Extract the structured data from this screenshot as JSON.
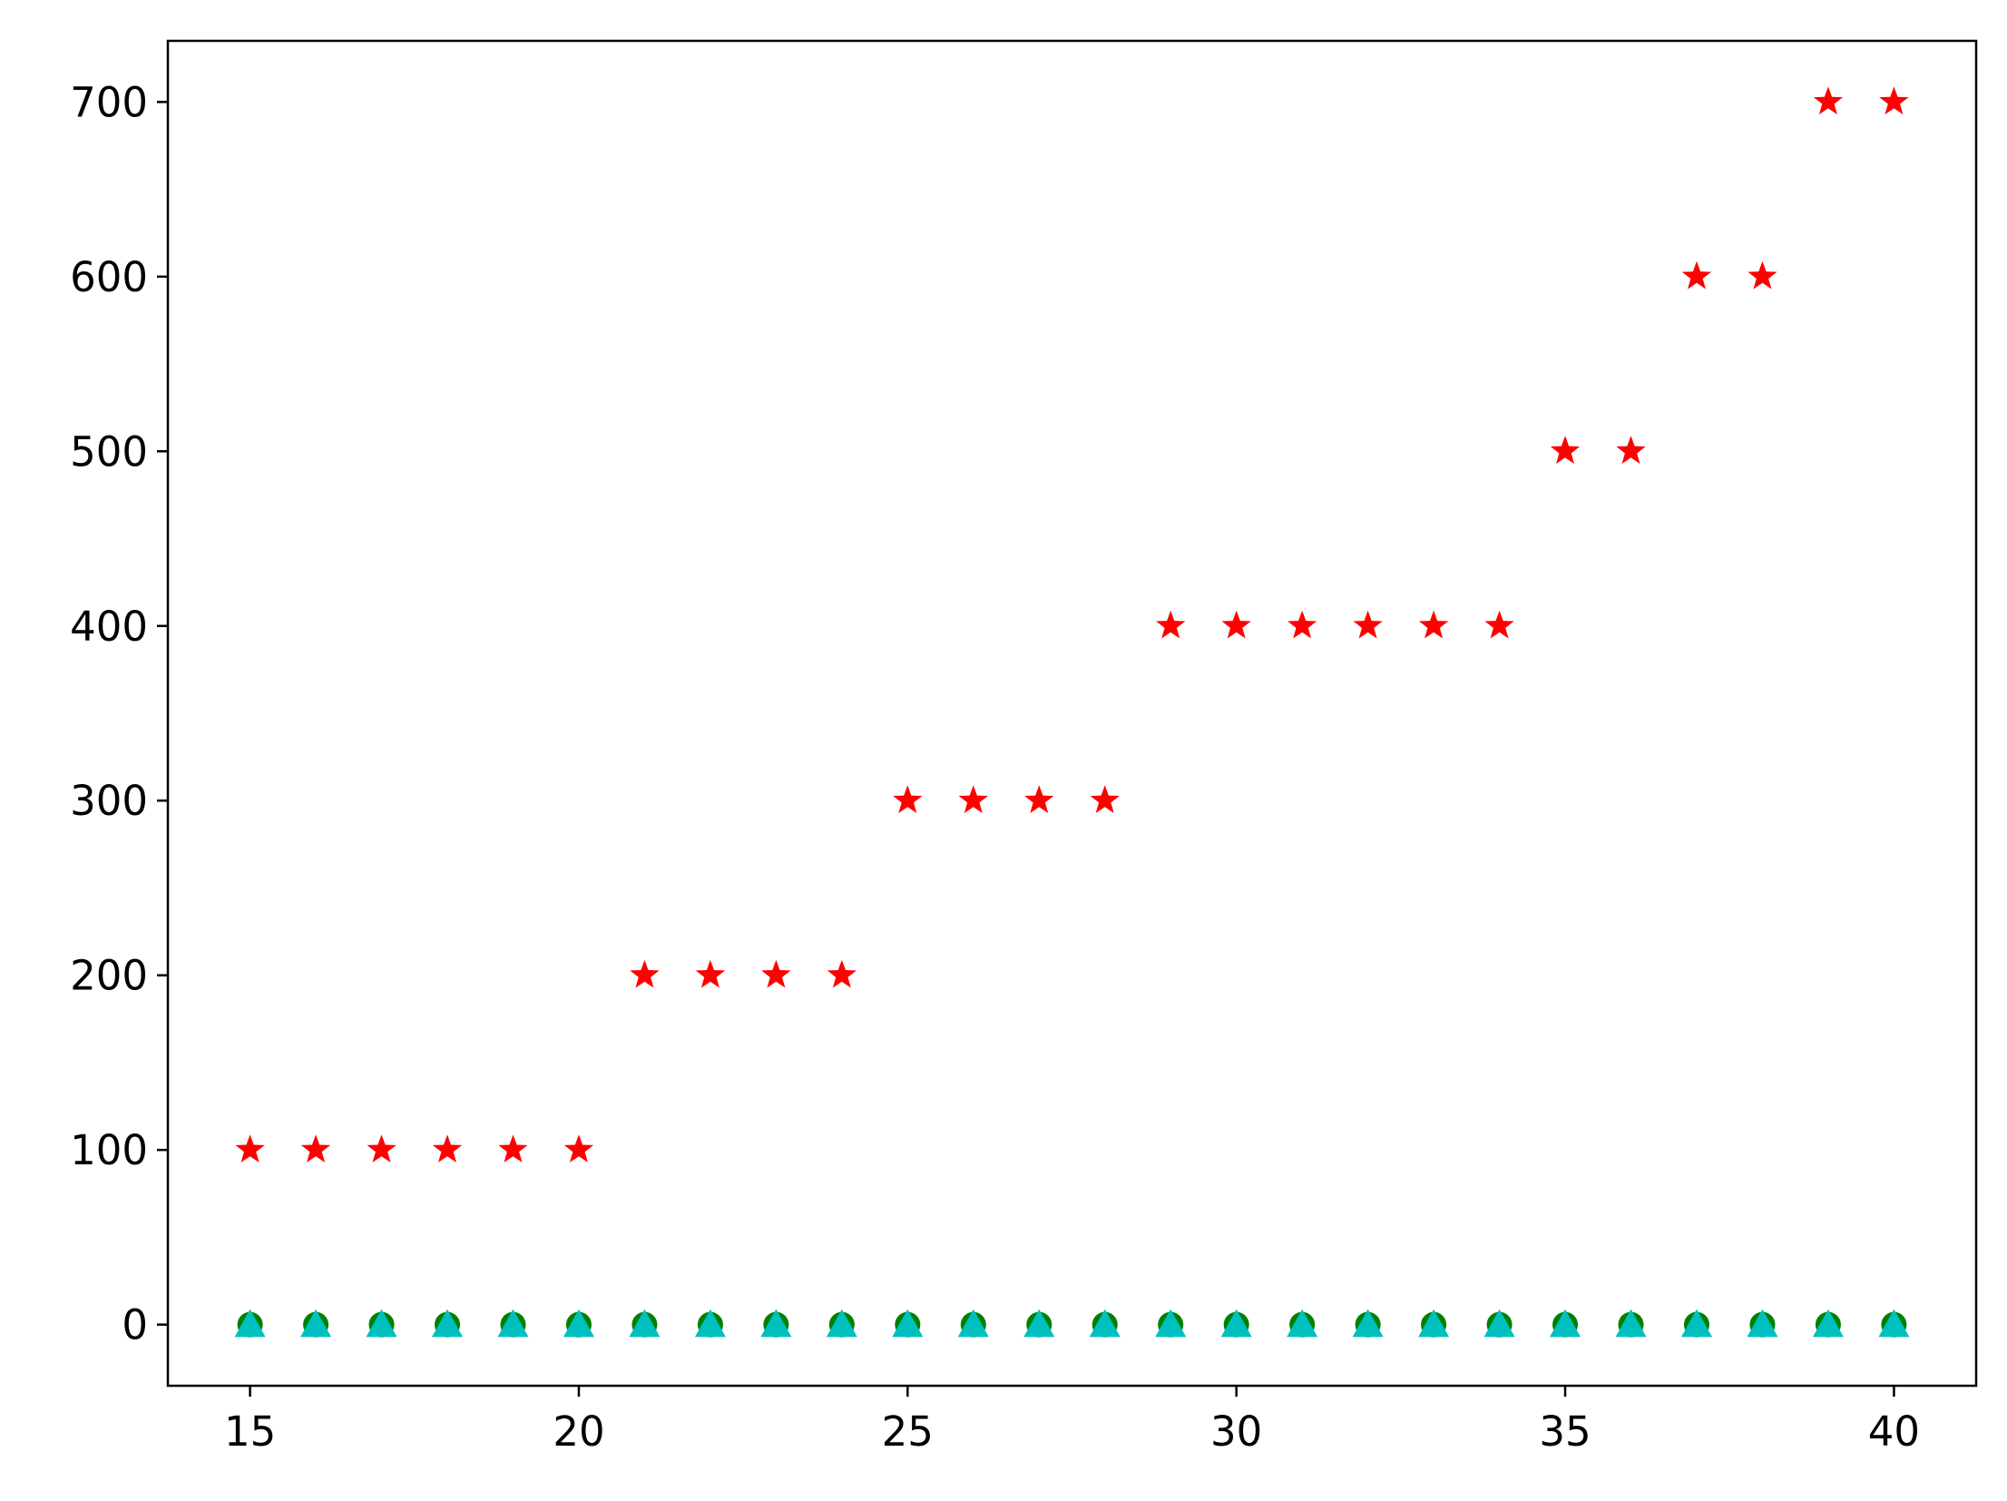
{
  "chart_data": {
    "type": "scatter",
    "title": "",
    "xlabel": "",
    "ylabel": "",
    "xlim": [
      13.75,
      41.25
    ],
    "ylim": [
      -35,
      735
    ],
    "xticks": [
      15,
      20,
      25,
      30,
      35,
      40
    ],
    "yticks": [
      0,
      100,
      200,
      300,
      400,
      500,
      600,
      700
    ],
    "grid": false,
    "legend": "none",
    "x": [
      15,
      16,
      17,
      18,
      19,
      20,
      21,
      22,
      23,
      24,
      25,
      26,
      27,
      28,
      29,
      30,
      31,
      32,
      33,
      34,
      35,
      36,
      37,
      38,
      39,
      40
    ],
    "series": [
      {
        "marker": "star",
        "color": "#ff0000",
        "values": [
          100,
          100,
          100,
          100,
          100,
          100,
          200,
          200,
          200,
          200,
          300,
          300,
          300,
          300,
          400,
          400,
          400,
          400,
          400,
          400,
          500,
          500,
          600,
          600,
          700,
          700
        ]
      },
      {
        "marker": "x",
        "color": "#0000ff",
        "values": [
          0,
          0,
          0,
          0,
          0,
          0,
          0,
          0,
          0,
          0,
          0,
          0,
          0,
          0,
          0,
          0,
          0,
          0,
          0,
          0,
          0,
          0,
          0,
          0,
          0,
          0
        ]
      },
      {
        "marker": "circle",
        "color": "#008000",
        "values": [
          0,
          0,
          0,
          0,
          0,
          0,
          0,
          0,
          0,
          0,
          0,
          0,
          0,
          0,
          0,
          0,
          0,
          0,
          0,
          0,
          0,
          0,
          0,
          0,
          0,
          0
        ]
      },
      {
        "marker": "triangle",
        "color": "#00bfbf",
        "values": [
          0,
          0,
          0,
          0,
          0,
          0,
          0,
          0,
          0,
          0,
          0,
          0,
          0,
          0,
          0,
          0,
          0,
          0,
          0,
          0,
          0,
          0,
          0,
          0,
          0,
          0
        ]
      }
    ]
  }
}
